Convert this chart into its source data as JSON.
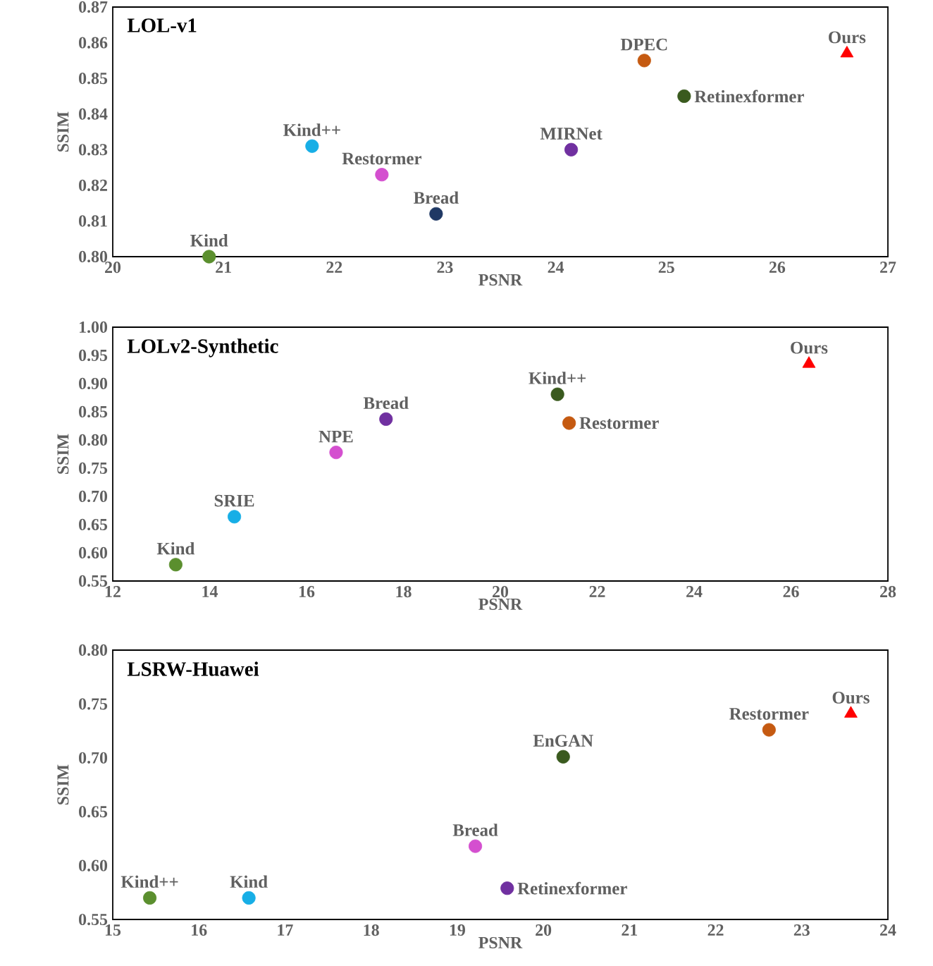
{
  "chart_data": [
    {
      "type": "scatter",
      "title": "LOL-v1",
      "xlabel": "PSNR",
      "ylabel": "SSIM",
      "marker": "circle",
      "xlim": [
        20,
        27
      ],
      "xticks": [
        20,
        21,
        22,
        23,
        24,
        25,
        26,
        27
      ],
      "ylim": [
        0.8,
        0.87
      ],
      "yticks": [
        {
          "value": 0.8,
          "label": "0.80"
        },
        {
          "value": 0.81,
          "label": "0.81"
        },
        {
          "value": 0.82,
          "label": "0.82"
        },
        {
          "value": 0.83,
          "label": "0.83"
        },
        {
          "value": 0.84,
          "label": "0.84"
        },
        {
          "value": 0.85,
          "label": "0.85"
        },
        {
          "value": 0.86,
          "label": "0.86"
        },
        {
          "value": 0.87,
          "label": "0.87"
        }
      ],
      "series": [
        {
          "name": "Kind",
          "color": "#5b8f2e",
          "x": [
            20.87
          ],
          "values": [
            0.8
          ]
        },
        {
          "name": "Kind++",
          "color": "#17aee6",
          "x": [
            21.8
          ],
          "values": [
            0.831
          ]
        },
        {
          "name": "Restormer",
          "color": "#d44fcf",
          "x": [
            22.43
          ],
          "values": [
            0.823
          ]
        },
        {
          "name": "Bread",
          "color": "#1f3864",
          "x": [
            22.92
          ],
          "values": [
            0.812
          ]
        },
        {
          "name": "MIRNet",
          "color": "#7030a0",
          "x": [
            24.14
          ],
          "values": [
            0.83
          ]
        },
        {
          "name": "DPEC",
          "color": "#c55a11",
          "x": [
            24.8
          ],
          "values": [
            0.855
          ]
        },
        {
          "name": "Retinexformer",
          "color": "#3a5a1e",
          "x": [
            25.16
          ],
          "values": [
            0.845
          ]
        },
        {
          "name": "Ours",
          "color": "#ff0000",
          "marker": "triangle",
          "x": [
            26.63
          ],
          "values": [
            0.857
          ]
        }
      ]
    },
    {
      "type": "scatter",
      "title": "LOLv2-Synthetic",
      "xlabel": "PSNR",
      "ylabel": "SSIM",
      "marker": "circle",
      "xlim": [
        12,
        28
      ],
      "xticks": [
        12,
        14,
        16,
        18,
        20,
        22,
        24,
        26,
        28
      ],
      "ylim": [
        0.55,
        1.0
      ],
      "yticks": [
        {
          "value": 0.55,
          "label": "0.55"
        },
        {
          "value": 0.6,
          "label": "0.60"
        },
        {
          "value": 0.65,
          "label": "0.65"
        },
        {
          "value": 0.7,
          "label": "0.70"
        },
        {
          "value": 0.75,
          "label": "0.75"
        },
        {
          "value": 0.8,
          "label": "0.80"
        },
        {
          "value": 0.85,
          "label": "0.85"
        },
        {
          "value": 0.9,
          "label": "0.90"
        },
        {
          "value": 0.95,
          "label": "0.95"
        },
        {
          "value": 1.0,
          "label": "1.00"
        }
      ],
      "series": [
        {
          "name": "Kind",
          "color": "#5b8f2e",
          "x": [
            13.3
          ],
          "values": [
            0.579
          ]
        },
        {
          "name": "SRIE",
          "color": "#17aee6",
          "x": [
            14.51
          ],
          "values": [
            0.664
          ]
        },
        {
          "name": "NPE",
          "color": "#d44fcf",
          "x": [
            16.61
          ],
          "values": [
            0.778
          ]
        },
        {
          "name": "Bread",
          "color": "#7030a0",
          "x": [
            17.64
          ],
          "values": [
            0.837
          ]
        },
        {
          "name": "Kind++",
          "color": "#3a5a1e",
          "x": [
            21.18
          ],
          "values": [
            0.881
          ]
        },
        {
          "name": "Restormer",
          "color": "#c55a11",
          "x": [
            21.42
          ],
          "values": [
            0.83
          ]
        },
        {
          "name": "Ours",
          "color": "#ff0000",
          "marker": "triangle",
          "x": [
            26.37
          ],
          "values": [
            0.935
          ]
        }
      ]
    },
    {
      "type": "scatter",
      "title": "LSRW-Huawei",
      "xlabel": "PSNR",
      "ylabel": "SSIM",
      "marker": "circle",
      "xlim": [
        15,
        24
      ],
      "xticks": [
        15,
        16,
        17,
        18,
        19,
        20,
        21,
        22,
        23,
        24
      ],
      "ylim": [
        0.55,
        0.8
      ],
      "yticks": [
        {
          "value": 0.55,
          "label": "0.55"
        },
        {
          "value": 0.6,
          "label": "0.60"
        },
        {
          "value": 0.65,
          "label": "0.65"
        },
        {
          "value": 0.7,
          "label": "0.70"
        },
        {
          "value": 0.75,
          "label": "0.75"
        },
        {
          "value": 0.8,
          "label": "0.80"
        }
      ],
      "series": [
        {
          "name": "Kind++",
          "color": "#5b8f2e",
          "x": [
            15.43
          ],
          "values": [
            0.57
          ]
        },
        {
          "name": "Kind",
          "color": "#17aee6",
          "x": [
            16.58
          ],
          "values": [
            0.57
          ]
        },
        {
          "name": "Bread",
          "color": "#d44fcf",
          "x": [
            19.21
          ],
          "values": [
            0.618
          ]
        },
        {
          "name": "Retinexformer",
          "color": "#7030a0",
          "x": [
            19.58
          ],
          "values": [
            0.579
          ]
        },
        {
          "name": "EnGAN",
          "color": "#3a5a1e",
          "x": [
            20.23
          ],
          "values": [
            0.701
          ]
        },
        {
          "name": "Restormer",
          "color": "#c55a11",
          "x": [
            22.62
          ],
          "values": [
            0.726
          ]
        },
        {
          "name": "Ours",
          "color": "#ff0000",
          "marker": "triangle",
          "x": [
            23.57
          ],
          "values": [
            0.741
          ]
        }
      ]
    }
  ]
}
